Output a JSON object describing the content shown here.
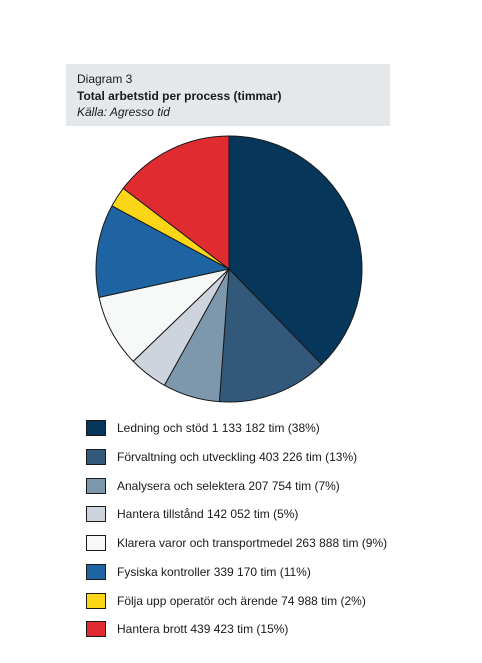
{
  "header": {
    "label": "Diagram 3",
    "title": "Total arbetstid per process (timmar)",
    "source": "Källa: Agresso tid"
  },
  "chart_data": {
    "type": "pie",
    "title": "Total arbetstid per process (timmar)",
    "legend_position": "bottom",
    "slices": [
      {
        "label": "Ledning och stöd 1 133 182 tim (38%)",
        "value": 1133182,
        "percent": 38,
        "color": "#06365a"
      },
      {
        "label": "Förvaltning och utveckling 403 226 tim (13%)",
        "value": 403226,
        "percent": 13,
        "color": "#32587a"
      },
      {
        "label": "Analysera och selektera 207 754 tim (7%)",
        "value": 207754,
        "percent": 7,
        "color": "#7d97ac"
      },
      {
        "label": "Hantera tillstånd 142 052 tim (5%)",
        "value": 142052,
        "percent": 5,
        "color": "#cdd4dd"
      },
      {
        "label": "Klarera varor och transportmedel 263 888 tim (9%)",
        "value": 263888,
        "percent": 9,
        "color": "#f7f8f8"
      },
      {
        "label": "Fysiska kontroller 339 170 tim (11%)",
        "value": 339170,
        "percent": 11,
        "color": "#1e64a2"
      },
      {
        "label": "Följa upp operatör och ärende 74 988 tim (2%)",
        "value": 74988,
        "percent": 2,
        "color": "#fbd616"
      },
      {
        "label": "Hantera brott 439 423 tim (15%)",
        "value": 439423,
        "percent": 15,
        "color": "#e02b31"
      }
    ]
  }
}
